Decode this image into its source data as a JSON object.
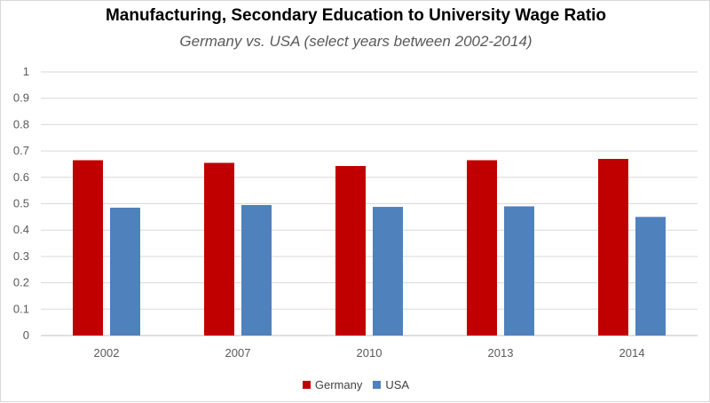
{
  "chart_data": {
    "type": "bar",
    "title": "Manufacturing, Secondary Education to University Wage Ratio",
    "subtitle": "Germany vs. USA (select years between 2002-2014)",
    "xlabel": "",
    "ylabel": "",
    "categories": [
      "2002",
      "2007",
      "2010",
      "2013",
      "2014"
    ],
    "series": [
      {
        "name": "Germany",
        "color": "#c00000",
        "values": [
          0.665,
          0.655,
          0.643,
          0.665,
          0.67
        ]
      },
      {
        "name": "USA",
        "color": "#4f81bd",
        "values": [
          0.485,
          0.495,
          0.488,
          0.49,
          0.45
        ]
      }
    ],
    "ylim": [
      0,
      1
    ],
    "yticks": [
      "0",
      "0.1",
      "0.2",
      "0.3",
      "0.4",
      "0.5",
      "0.6",
      "0.7",
      "0.8",
      "0.9",
      "1"
    ],
    "grid": true,
    "legend_position": "bottom"
  }
}
